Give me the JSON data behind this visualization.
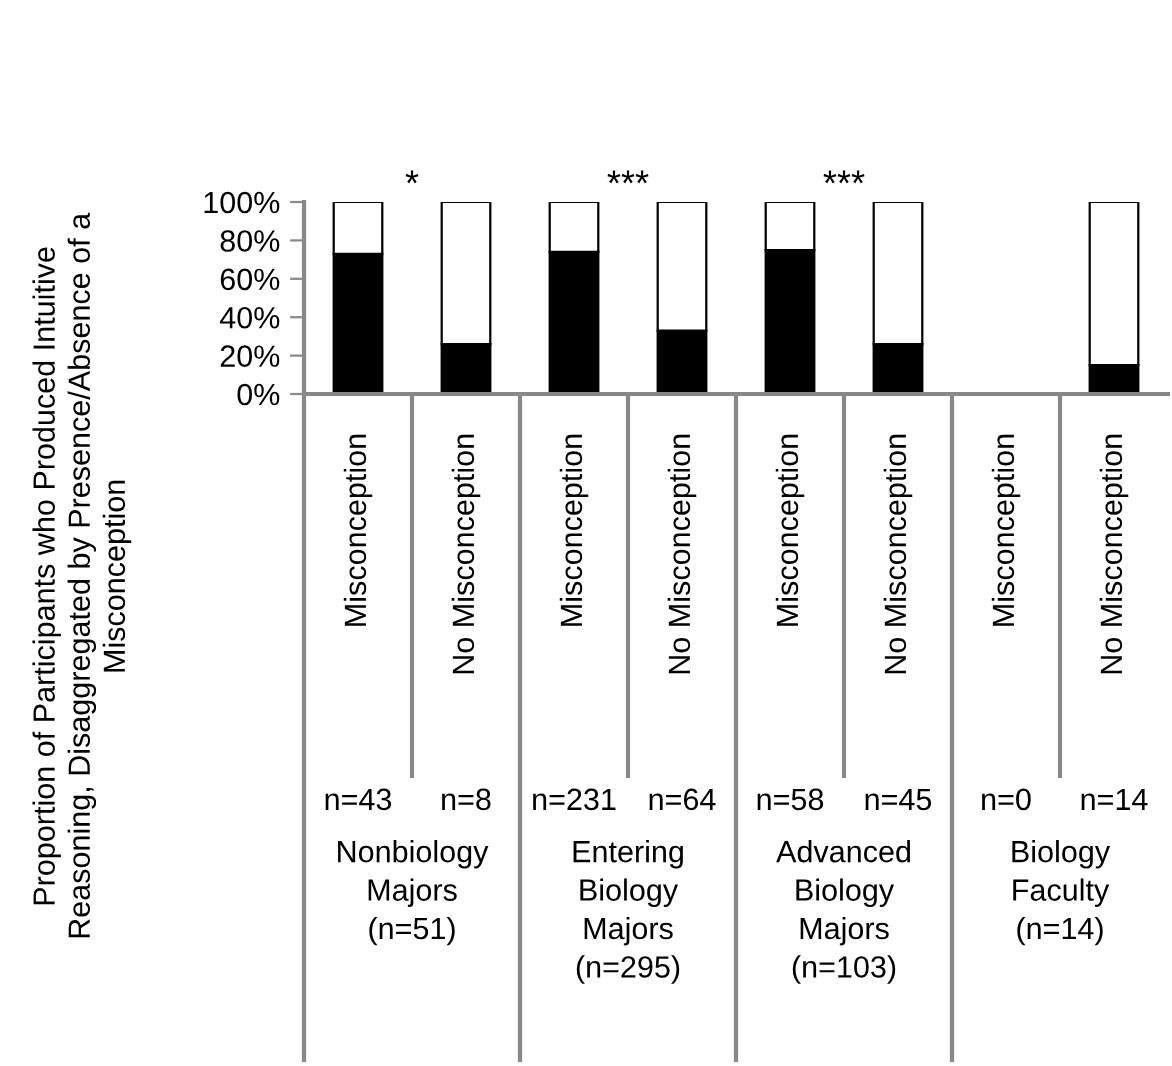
{
  "chart_data": {
    "type": "bar",
    "stacked": true,
    "ylabel": "Proportion of Participants who Produced Intuitive\nReasoning, Disaggregated by Presence/Absence of a\nMisconception",
    "categories": [
      "Misconception",
      "No Misconception",
      "Misconception",
      "No Misconception",
      "Misconception",
      "No Misconception",
      "Misconception",
      "No Misconception"
    ],
    "series": [
      {
        "color": "#000000",
        "values": [
          73,
          26,
          74,
          33,
          75,
          26,
          null,
          15
        ]
      },
      {
        "color": "#ffffff",
        "values": [
          27,
          74,
          26,
          67,
          25,
          74,
          null,
          85
        ]
      }
    ],
    "ylim": [
      0,
      100
    ],
    "yticks": [
      {
        "value": 0,
        "label": "0%"
      },
      {
        "value": 20,
        "label": "20%"
      },
      {
        "value": 40,
        "label": "40%"
      },
      {
        "value": 60,
        "label": "60%"
      },
      {
        "value": 80,
        "label": "80%"
      },
      {
        "value": 100,
        "label": "100%"
      }
    ],
    "grid": false,
    "legend": false,
    "annotations": [
      "*",
      "***",
      "***",
      null,
      "n=43",
      "n=8",
      "n=231",
      "n=64",
      "n=58",
      "n=45",
      "n=0",
      "n=14",
      "Nonbiology\nMajors\n(n=51)",
      "Entering\nBiology\nMajors\n(n=295)",
      "Advanced\nBiology\nMajors\n(n=103)",
      "Biology\nFaculty\n(n=14)"
    ]
  }
}
